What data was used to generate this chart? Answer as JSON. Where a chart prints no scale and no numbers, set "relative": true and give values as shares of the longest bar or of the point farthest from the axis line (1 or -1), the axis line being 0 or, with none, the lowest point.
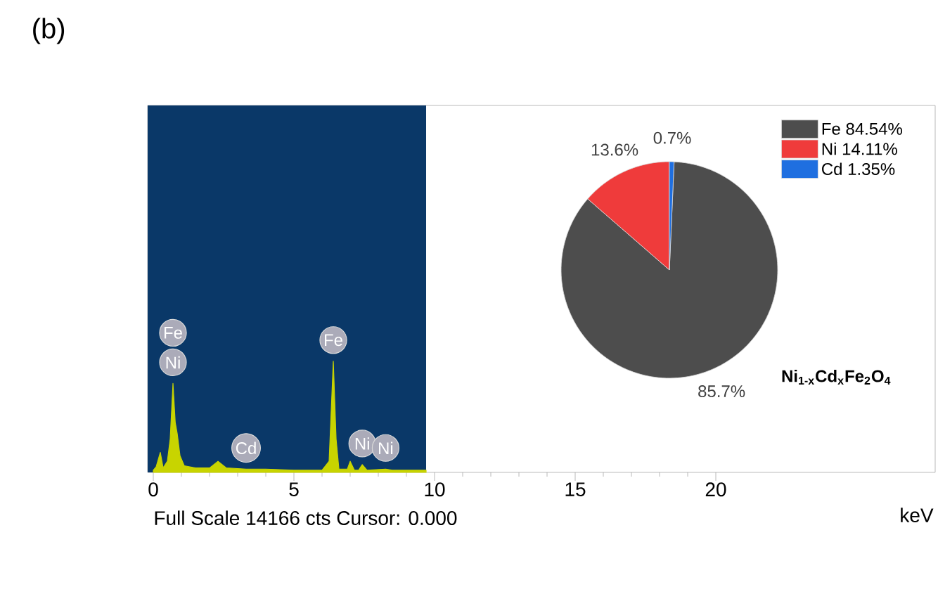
{
  "chart_data": [
    {
      "type": "area",
      "title": "(b)",
      "xlabel": "keV",
      "relative": true,
      "color": "#c8d400",
      "x": [
        0.0,
        0.1,
        0.25,
        0.35,
        0.5,
        0.6,
        0.7,
        0.78,
        0.85,
        0.95,
        1.1,
        1.5,
        2.0,
        2.3,
        2.6,
        3.3,
        4.0,
        5.0,
        6.0,
        6.25,
        6.4,
        6.5,
        6.6,
        6.9,
        7.0,
        7.15,
        7.3,
        7.43,
        7.6,
        8.26,
        8.5,
        9.7
      ],
      "values": [
        0.02,
        0.05,
        0.18,
        0.04,
        0.1,
        0.3,
        0.8,
        0.45,
        0.35,
        0.15,
        0.06,
        0.04,
        0.04,
        0.1,
        0.04,
        0.03,
        0.03,
        0.02,
        0.02,
        0.1,
        1.0,
        0.3,
        0.03,
        0.03,
        0.1,
        0.02,
        0.02,
        0.07,
        0.02,
        0.03,
        0.02,
        0.02
      ],
      "xlim": [
        -0.2,
        27.8
      ],
      "xticks": [
        0,
        5,
        10,
        15,
        20
      ],
      "tick_labels": "x",
      "bands": [
        {
          "axis": "x",
          "from": -0.2,
          "to": 9.7,
          "color": "#0a3868"
        }
      ],
      "annotations": [
        "Full Scale 14166 cts Cursor: 0.000",
        {
          "text": "Fe",
          "x": 0.7,
          "y": 0.8
        },
        {
          "text": "Ni",
          "x": 0.7,
          "y": 0.8
        },
        {
          "text": "Fe",
          "x": 6.4,
          "y": 1.0
        },
        {
          "text": "Cd",
          "x": 3.3,
          "y": 0.03
        },
        {
          "text": "Ni",
          "x": 7.43,
          "y": 0.07
        },
        {
          "text": "Ni",
          "x": 8.26,
          "y": 0.03
        }
      ]
    },
    {
      "type": "pie",
      "categories": [
        "Fe 84.54%",
        "Ni 14.11%",
        "Cd 1.35%"
      ],
      "values": [
        85.7,
        13.6,
        0.7
      ],
      "colors": [
        "#4d4d4d",
        "#ef3b3b",
        "#1f6fe0"
      ],
      "value_labels": [
        "85.7%",
        "13.6%",
        "0.7%"
      ],
      "legend": "top right",
      "annotations": [
        "Ni$_{1-x}$Cd$_{x}$Fe$_{2}$O$_{4}$"
      ]
    }
  ]
}
